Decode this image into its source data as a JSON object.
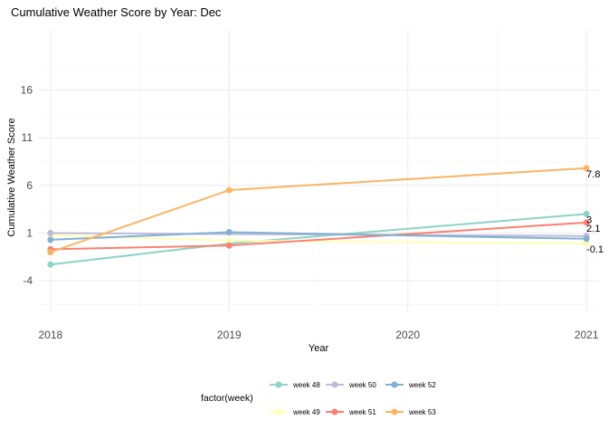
{
  "chart_data": {
    "type": "line",
    "title": "Cumulative Weather Score by Year: Dec",
    "xlabel": "Year",
    "ylabel": "Cumulative Weather Score",
    "x": [
      2018,
      2019,
      2020,
      2021
    ],
    "x_ticks": [
      "2018",
      "2019",
      "2020",
      "2021"
    ],
    "y_ticks": [
      "-4",
      "1",
      "6",
      "11",
      "16"
    ],
    "xlim": [
      2017.93,
      2021.07
    ],
    "ylim": [
      -7.3,
      22.3
    ],
    "grid": true,
    "legend": {
      "title": "factor(week)",
      "position": "bottom"
    },
    "series": [
      {
        "name": "week 48",
        "color": "#8dd3c7",
        "x": [
          2018,
          2019,
          2021
        ],
        "values": [
          -2.3,
          -0.1,
          3.0
        ],
        "end_label": "3"
      },
      {
        "name": "week 49",
        "color": "#ffffb3",
        "x": [
          2018,
          2019,
          2021
        ],
        "values": [
          0.8,
          0.2,
          -0.1
        ],
        "end_label": "-0.1"
      },
      {
        "name": "week 50",
        "color": "#bebada",
        "x": [
          2018,
          2021
        ],
        "values": [
          1.0,
          0.7
        ],
        "end_label": ""
      },
      {
        "name": "week 51",
        "color": "#fb8072",
        "x": [
          2018,
          2019,
          2021
        ],
        "values": [
          -0.7,
          -0.3,
          2.1
        ],
        "end_label": "2.1"
      },
      {
        "name": "week 52",
        "color": "#80b1d3",
        "x": [
          2018,
          2019,
          2021
        ],
        "values": [
          0.3,
          1.1,
          0.4
        ],
        "end_label": ""
      },
      {
        "name": "week 53",
        "color": "#fdb462",
        "x": [
          2018,
          2019,
          2021
        ],
        "values": [
          -1.0,
          5.5,
          7.8
        ],
        "end_label": "7.8"
      }
    ]
  }
}
